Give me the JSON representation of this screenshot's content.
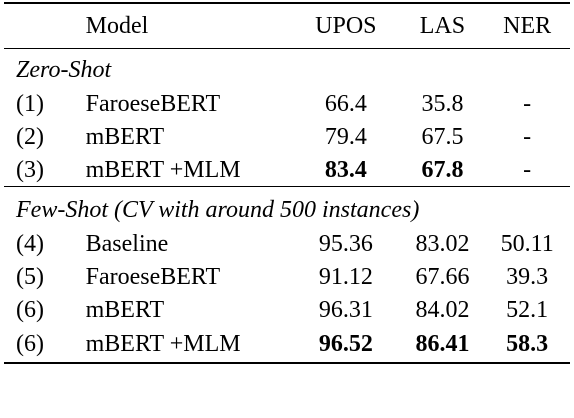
{
  "columns": {
    "model": "Model",
    "upos": "UPOS",
    "las": "LAS",
    "ner": "NER"
  },
  "sections": [
    {
      "title": "Zero-Shot",
      "rows": [
        {
          "idx": "(1)",
          "model": "FaroeseBERT",
          "upos": "66.4",
          "las": "35.8",
          "ner": "-",
          "bold": []
        },
        {
          "idx": "(2)",
          "model": "mBERT",
          "upos": "79.4",
          "las": "67.5",
          "ner": "-",
          "bold": []
        },
        {
          "idx": "(3)",
          "model": "mBERT +MLM",
          "upos": "83.4",
          "las": "67.8",
          "ner": "-",
          "bold": [
            "upos",
            "las"
          ]
        }
      ]
    },
    {
      "title": "Few-Shot (CV with around 500 instances)",
      "rows": [
        {
          "idx": "(4)",
          "model": "Baseline",
          "upos": "95.36",
          "las": "83.02",
          "ner": "50.11",
          "bold": []
        },
        {
          "idx": "(5)",
          "model": "FaroeseBERT",
          "upos": "91.12",
          "las": "67.66",
          "ner": "39.3",
          "bold": []
        },
        {
          "idx": "(6)",
          "model": "mBERT",
          "upos": "96.31",
          "las": "84.02",
          "ner": "52.1",
          "bold": []
        },
        {
          "idx": "(6)",
          "model": "mBERT +MLM",
          "upos": "96.52",
          "las": "86.41",
          "ner": "58.3",
          "bold": [
            "upos",
            "las",
            "ner"
          ]
        }
      ]
    }
  ]
}
